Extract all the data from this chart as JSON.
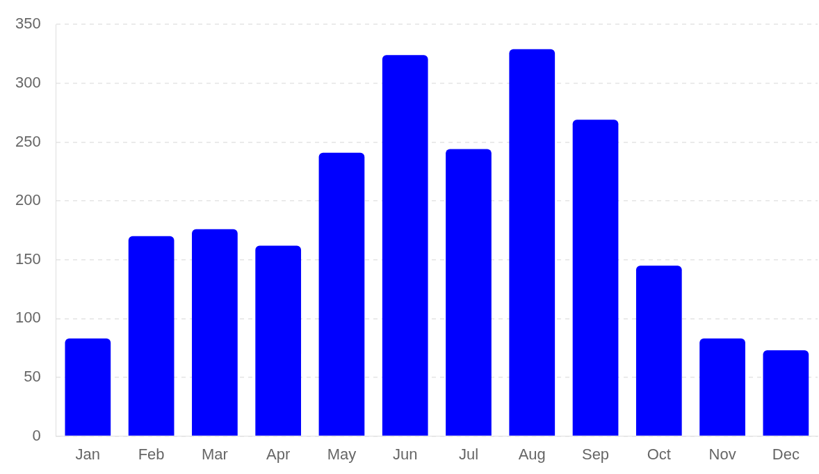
{
  "chart_data": {
    "type": "bar",
    "categories": [
      "Jan",
      "Feb",
      "Mar",
      "Apr",
      "May",
      "Jun",
      "Jul",
      "Aug",
      "Sep",
      "Oct",
      "Nov",
      "Dec"
    ],
    "values": [
      83,
      170,
      176,
      162,
      241,
      324,
      244,
      329,
      269,
      145,
      83,
      73
    ],
    "color": "#0000ff",
    "ylim": [
      0,
      350
    ],
    "yticks": [
      0,
      50,
      100,
      150,
      200,
      250,
      300,
      350
    ],
    "grid": "y"
  }
}
